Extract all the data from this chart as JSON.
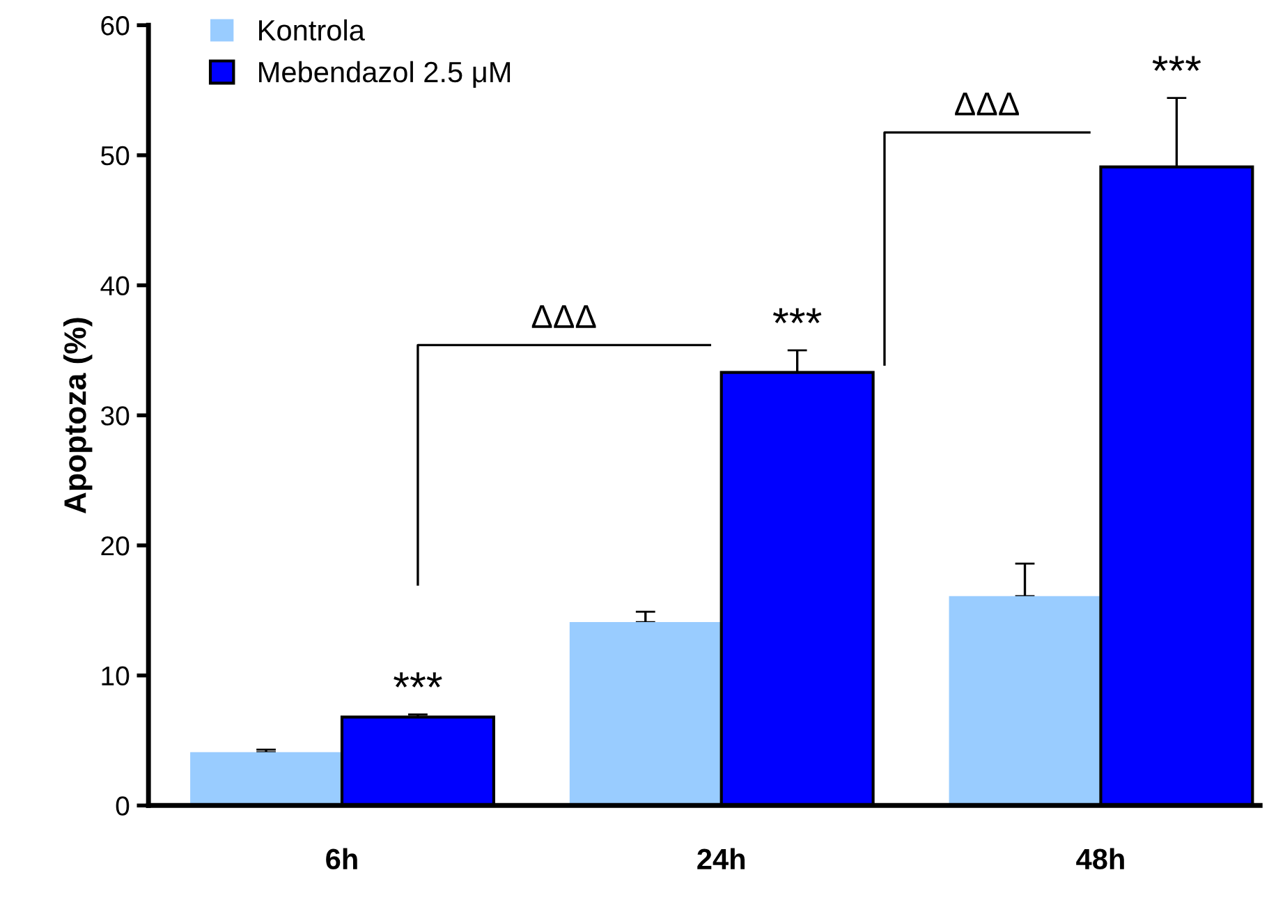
{
  "chart_data": {
    "type": "bar",
    "ylabel": "Apoptoza (%)",
    "categories": [
      "6h",
      "24h",
      "48h"
    ],
    "series": [
      {
        "name": "Kontrola",
        "color": "#99ccff",
        "values": [
          4.1,
          14.1,
          16.1
        ],
        "errors": [
          0.2,
          0.8,
          2.5
        ]
      },
      {
        "name": "Mebendazol 2.5 μM",
        "color": "#0000ff",
        "values": [
          6.8,
          33.3,
          49.1
        ],
        "errors": [
          0.2,
          1.7,
          5.3
        ]
      }
    ],
    "ylim": [
      0,
      60
    ],
    "yticks": [
      0,
      10,
      20,
      30,
      40,
      50,
      60
    ],
    "grid": false,
    "legend": "top left",
    "annotations": [
      "***",
      "***",
      "***",
      "ΔΔΔ",
      "ΔΔΔ"
    ]
  }
}
